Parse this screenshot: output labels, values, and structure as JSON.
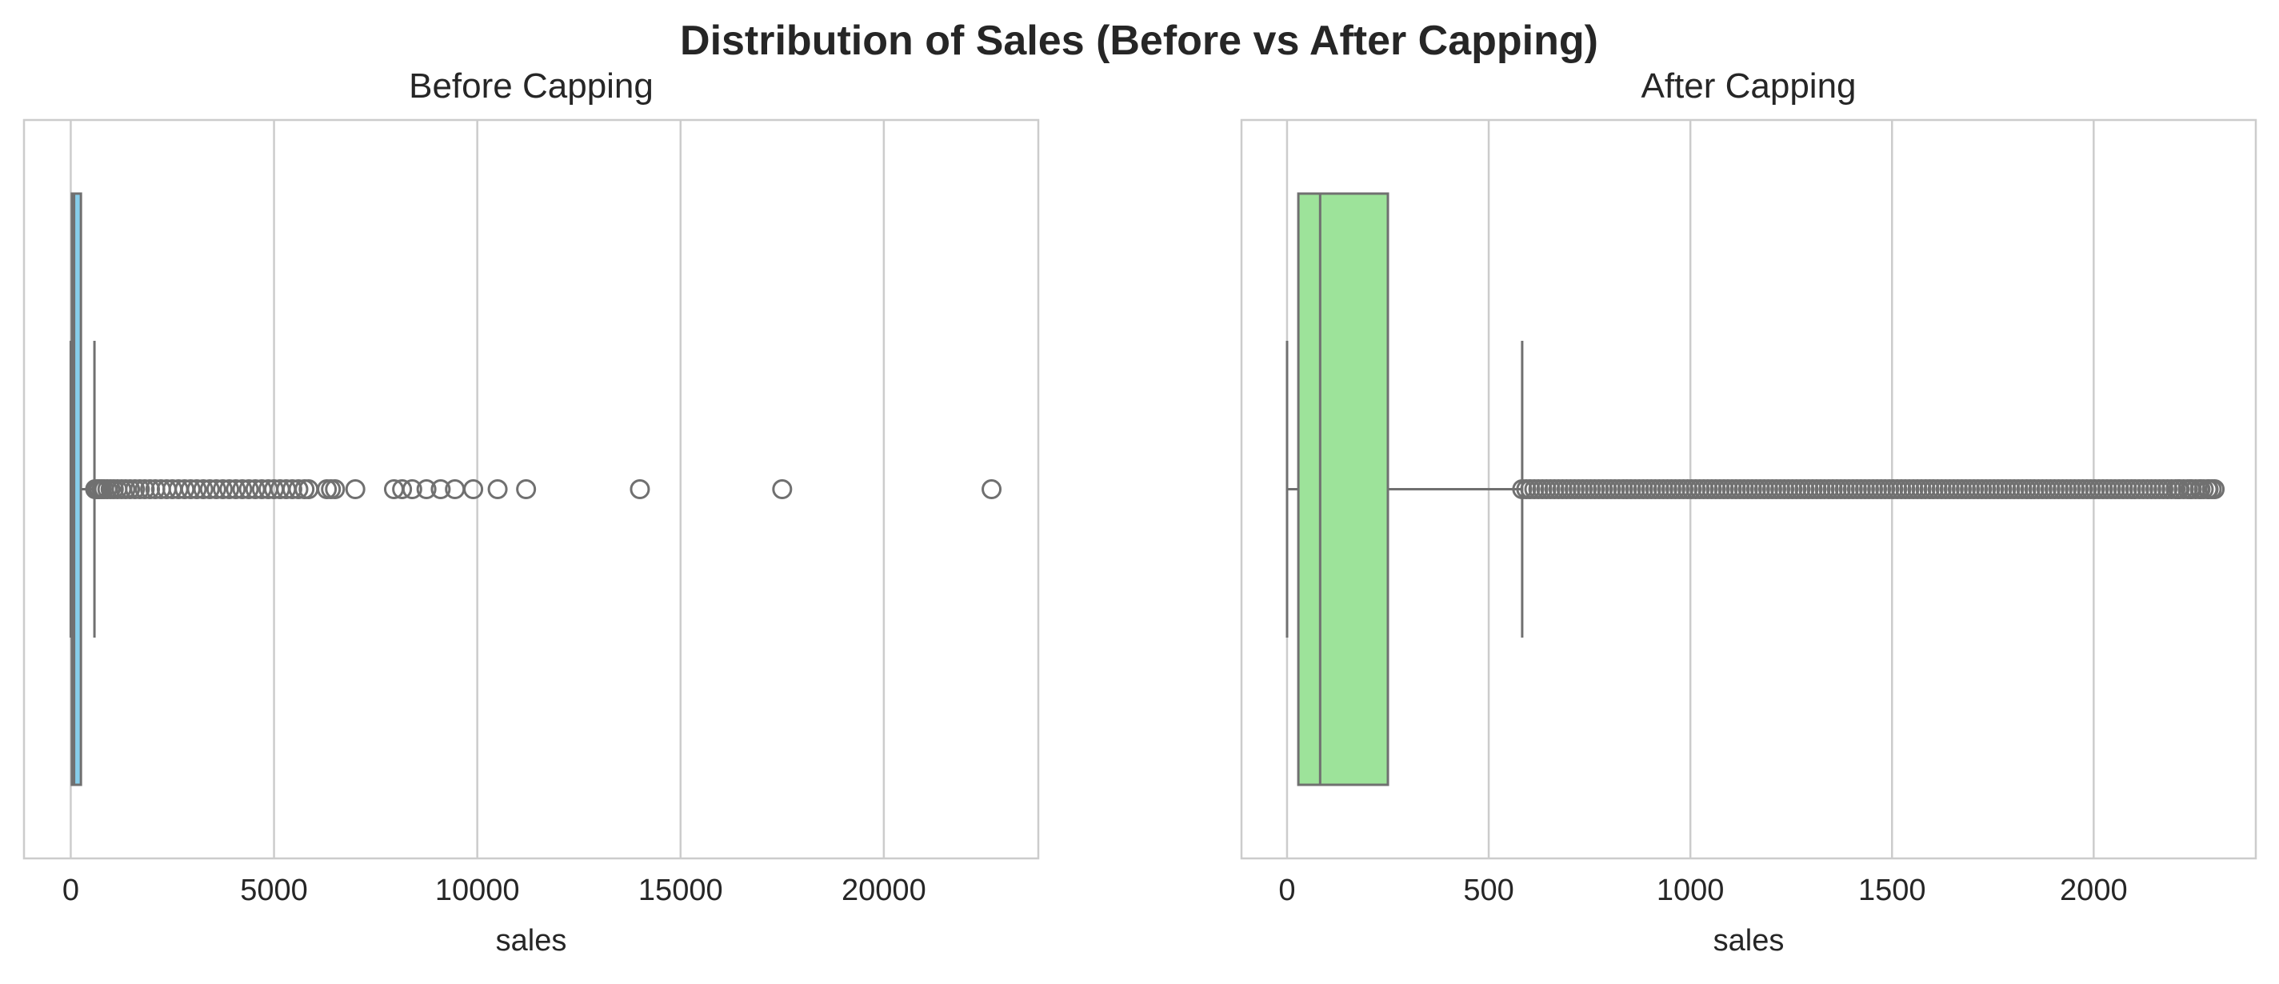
{
  "figure": {
    "title": "Distribution of Sales (Before vs After Capping)"
  },
  "colors": {
    "grid": "#cccccc",
    "frame": "#cccccc",
    "line": "#707070",
    "text": "#262626",
    "before_box": "#87ceeb",
    "after_box": "#9de39a"
  },
  "chart_data": [
    {
      "type": "box",
      "orientation": "horizontal",
      "title": "Before Capping",
      "xlabel": "sales",
      "ylabel": "",
      "xlim": [
        -1150,
        23800
      ],
      "xticks": [
        0,
        5000,
        10000,
        15000,
        20000
      ],
      "xtick_labels": [
        "0",
        "5000",
        "10000",
        "15000",
        "20000"
      ],
      "grid": "vertical",
      "box": {
        "color": "#87ceeb",
        "whisker_low": 0,
        "q1": 28,
        "median": 82,
        "q3": 250,
        "whisker_high": 583
      },
      "outliers": [
        600,
        650,
        700,
        760,
        820,
        900,
        980,
        1060,
        1150,
        1250,
        1350,
        1460,
        1580,
        1700,
        1820,
        1950,
        2080,
        2220,
        2360,
        2500,
        2650,
        2800,
        2950,
        3100,
        3260,
        3420,
        3580,
        3740,
        3900,
        4060,
        4220,
        4380,
        4540,
        4700,
        4860,
        5000,
        5150,
        5300,
        5450,
        5600,
        5750,
        5850,
        6300,
        6400,
        6500,
        7000,
        7950,
        8150,
        8400,
        8750,
        9100,
        9450,
        9900,
        10500,
        11200,
        14000,
        17500,
        22650
      ]
    },
    {
      "type": "box",
      "orientation": "horizontal",
      "title": "After Capping",
      "xlabel": "sales",
      "ylabel": "",
      "xlim": [
        -113,
        2402
      ],
      "xticks": [
        0,
        500,
        1000,
        1500,
        2000
      ],
      "xtick_labels": [
        "0",
        "500",
        "1000",
        "1500",
        "2000"
      ],
      "grid": "vertical",
      "box": {
        "color": "#9de39a",
        "whisker_low": 0,
        "q1": 28,
        "median": 82,
        "q3": 250,
        "whisker_high": 583
      },
      "outliers_dense_range": [
        583,
        2300
      ],
      "outliers_dense_step": 10,
      "outliers": [
        2210,
        2240,
        2265,
        2285,
        2300
      ]
    }
  ]
}
